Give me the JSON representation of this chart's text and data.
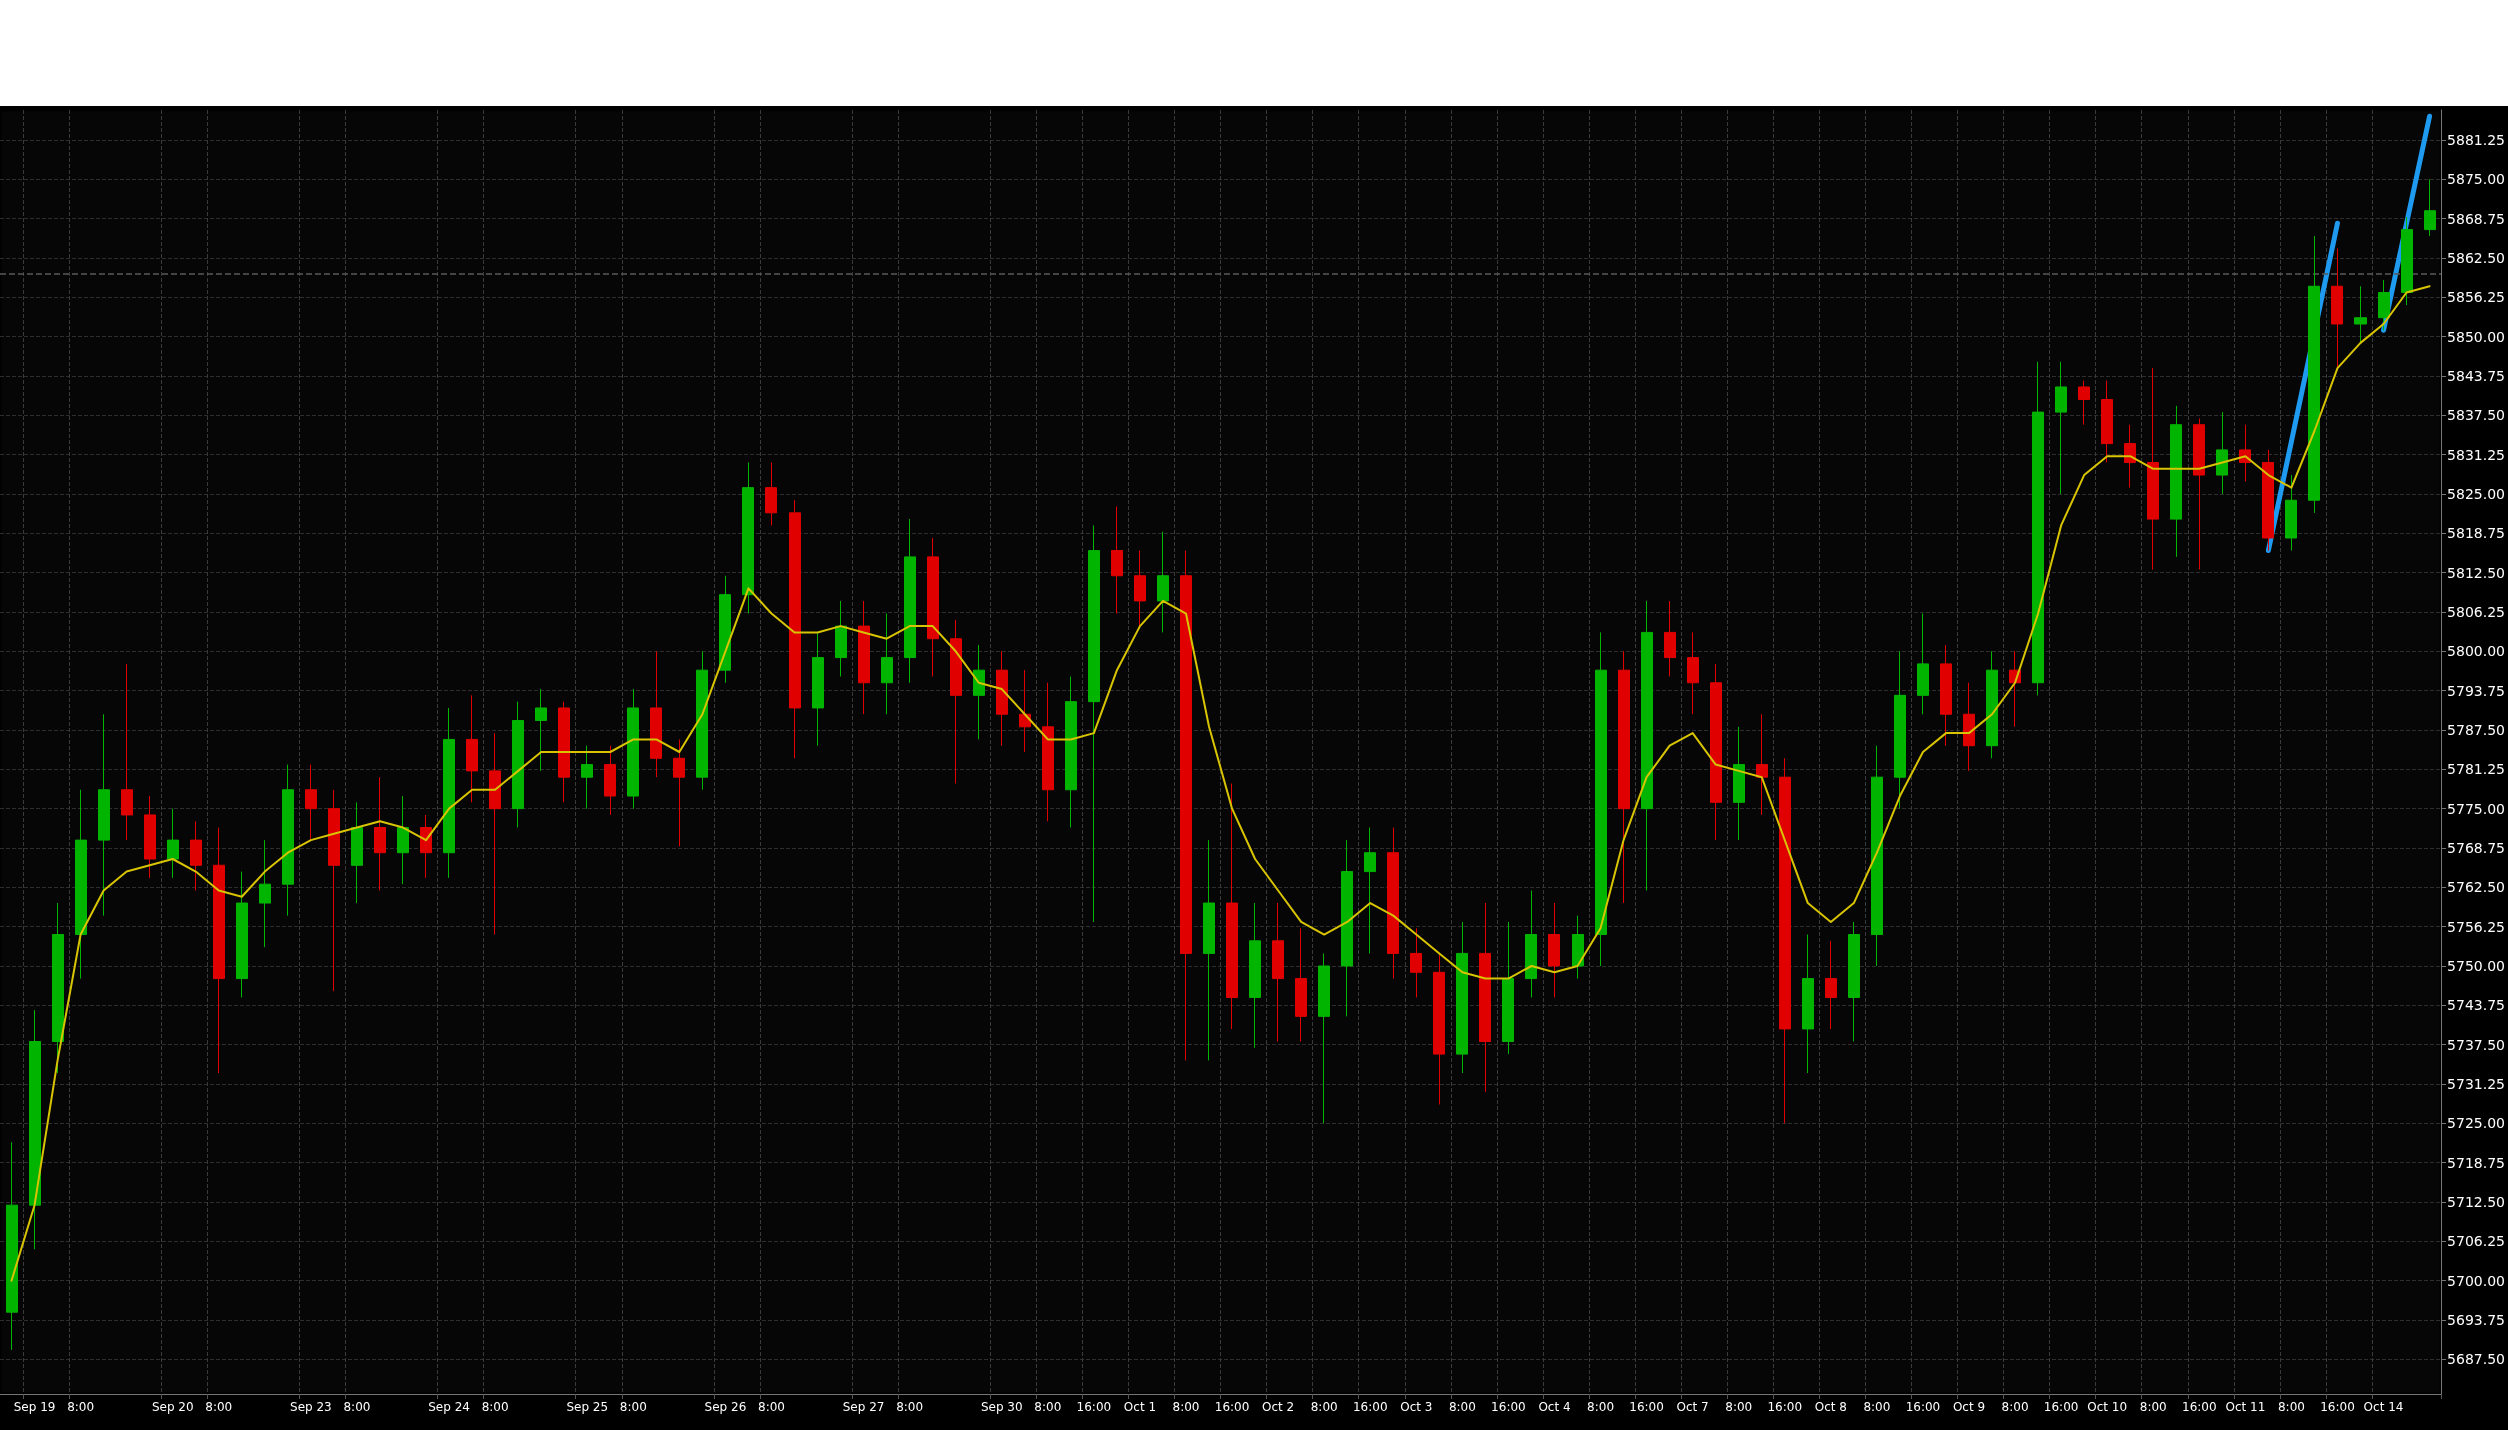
{
  "chart_data": {
    "type": "candlestick",
    "categories": [
      null,
      "Sep 19",
      null,
      "8:00",
      null,
      null,
      null,
      "Sep 20",
      null,
      "8:00",
      null,
      null,
      null,
      "Sep 23",
      null,
      "8:00",
      null,
      null,
      null,
      "Sep 24",
      null,
      "8:00",
      null,
      null,
      null,
      "Sep 25",
      null,
      "8:00",
      null,
      null,
      null,
      "Sep 26",
      null,
      "8:00",
      null,
      null,
      null,
      "Sep 27",
      null,
      "8:00",
      null,
      null,
      null,
      "Sep 30",
      null,
      "8:00",
      null,
      "16:00",
      null,
      "Oct 1",
      null,
      "8:00",
      null,
      "16:00",
      null,
      "Oct 2",
      null,
      "8:00",
      null,
      "16:00",
      null,
      "Oct 3",
      null,
      "8:00",
      null,
      "16:00",
      null,
      "Oct 4",
      null,
      "8:00",
      null,
      "16:00",
      null,
      "Oct 7",
      null,
      "8:00",
      null,
      "16:00",
      null,
      "Oct 8",
      null,
      "8:00",
      null,
      "16:00",
      null,
      "Oct 9",
      null,
      "8:00",
      null,
      "16:00",
      null,
      "Oct 10",
      null,
      "8:00",
      null,
      "16:00",
      null,
      "Oct 11",
      null,
      "8:00",
      null,
      "16:00",
      null,
      "Oct 14",
      null,
      null
    ],
    "ohlc": [
      [
        5695,
        5722,
        5689,
        5712
      ],
      [
        5712,
        5743,
        5705,
        5738
      ],
      [
        5738,
        5760,
        5733,
        5755
      ],
      [
        5755,
        5778,
        5748,
        5770
      ],
      [
        5770,
        5790,
        5758,
        5778
      ],
      [
        5778,
        5798,
        5770,
        5774
      ],
      [
        5774,
        5777,
        5764,
        5767
      ],
      [
        5767,
        5775,
        5764,
        5770
      ],
      [
        5770,
        5773,
        5762,
        5766
      ],
      [
        5766,
        5772,
        5733,
        5748
      ],
      [
        5748,
        5765,
        5745,
        5760
      ],
      [
        5760,
        5770,
        5753,
        5763
      ],
      [
        5763,
        5782,
        5758,
        5778
      ],
      [
        5778,
        5782,
        5770,
        5775
      ],
      [
        5775,
        5778,
        5746,
        5766
      ],
      [
        5766,
        5776,
        5760,
        5772
      ],
      [
        5772,
        5780,
        5762,
        5768
      ],
      [
        5768,
        5777,
        5763,
        5772
      ],
      [
        5772,
        5774,
        5764,
        5768
      ],
      [
        5768,
        5791,
        5764,
        5786
      ],
      [
        5786,
        5793,
        5776,
        5781
      ],
      [
        5781,
        5787,
        5755,
        5775
      ],
      [
        5775,
        5792,
        5772,
        5789
      ],
      [
        5789,
        5794,
        5781,
        5791
      ],
      [
        5791,
        5792,
        5776,
        5780
      ],
      [
        5780,
        5785,
        5775,
        5782
      ],
      [
        5782,
        5785,
        5774,
        5777
      ],
      [
        5777,
        5794,
        5775,
        5791
      ],
      [
        5791,
        5800,
        5780,
        5783
      ],
      [
        5783,
        5786,
        5769,
        5780
      ],
      [
        5780,
        5800,
        5778,
        5797
      ],
      [
        5797,
        5812,
        5795,
        5809
      ],
      [
        5809,
        5830,
        5806,
        5826
      ],
      [
        5826,
        5830,
        5820,
        5822
      ],
      [
        5822,
        5824,
        5783,
        5791
      ],
      [
        5791,
        5803,
        5785,
        5799
      ],
      [
        5799,
        5808,
        5796,
        5804
      ],
      [
        5804,
        5808,
        5790,
        5795
      ],
      [
        5795,
        5806,
        5790,
        5799
      ],
      [
        5799,
        5821,
        5795,
        5815
      ],
      [
        5815,
        5818,
        5796,
        5802
      ],
      [
        5802,
        5805,
        5779,
        5793
      ],
      [
        5793,
        5801,
        5786,
        5797
      ],
      [
        5797,
        5800,
        5785,
        5790
      ],
      [
        5790,
        5797,
        5784,
        5788
      ],
      [
        5788,
        5795,
        5773,
        5778
      ],
      [
        5778,
        5796,
        5772,
        5792
      ],
      [
        5792,
        5820,
        5757,
        5816
      ],
      [
        5816,
        5823,
        5806,
        5812
      ],
      [
        5812,
        5816,
        5804,
        5808
      ],
      [
        5808,
        5819,
        5803,
        5812
      ],
      [
        5812,
        5816,
        5735,
        5752
      ],
      [
        5752,
        5770,
        5735,
        5760
      ],
      [
        5760,
        5779,
        5740,
        5745
      ],
      [
        5745,
        5760,
        5737,
        5754
      ],
      [
        5754,
        5760,
        5738,
        5748
      ],
      [
        5748,
        5756,
        5738,
        5742
      ],
      [
        5742,
        5752,
        5725,
        5750
      ],
      [
        5750,
        5770,
        5742,
        5765
      ],
      [
        5765,
        5772,
        5752,
        5768
      ],
      [
        5768,
        5772,
        5748,
        5752
      ],
      [
        5752,
        5756,
        5745,
        5749
      ],
      [
        5749,
        5752,
        5728,
        5736
      ],
      [
        5736,
        5757,
        5733,
        5752
      ],
      [
        5752,
        5760,
        5730,
        5738
      ],
      [
        5738,
        5757,
        5736,
        5748
      ],
      [
        5748,
        5762,
        5745,
        5755
      ],
      [
        5755,
        5760,
        5745,
        5750
      ],
      [
        5750,
        5758,
        5748,
        5755
      ],
      [
        5755,
        5803,
        5750,
        5797
      ],
      [
        5797,
        5800,
        5760,
        5775
      ],
      [
        5775,
        5808,
        5762,
        5803
      ],
      [
        5803,
        5808,
        5796,
        5799
      ],
      [
        5799,
        5803,
        5790,
        5795
      ],
      [
        5795,
        5798,
        5770,
        5776
      ],
      [
        5776,
        5788,
        5770,
        5782
      ],
      [
        5782,
        5790,
        5774,
        5780
      ],
      [
        5780,
        5783,
        5725,
        5740
      ],
      [
        5740,
        5755,
        5733,
        5748
      ],
      [
        5748,
        5754,
        5740,
        5745
      ],
      [
        5745,
        5757,
        5738,
        5755
      ],
      [
        5755,
        5785,
        5750,
        5780
      ],
      [
        5780,
        5800,
        5775,
        5793
      ],
      [
        5793,
        5806,
        5790,
        5798
      ],
      [
        5798,
        5801,
        5785,
        5790
      ],
      [
        5790,
        5795,
        5781,
        5785
      ],
      [
        5785,
        5800,
        5783,
        5797
      ],
      [
        5797,
        5800,
        5788,
        5795
      ],
      [
        5795,
        5846,
        5793,
        5838
      ],
      [
        5838,
        5846,
        5825,
        5842
      ],
      [
        5842,
        5843,
        5836,
        5840
      ],
      [
        5840,
        5843,
        5830,
        5833
      ],
      [
        5833,
        5836,
        5826,
        5830
      ],
      [
        5830,
        5845,
        5813,
        5821
      ],
      [
        5821,
        5839,
        5815,
        5836
      ],
      [
        5836,
        5837,
        5813,
        5828
      ],
      [
        5828,
        5838,
        5825,
        5832
      ],
      [
        5832,
        5836,
        5827,
        5830
      ],
      [
        5830,
        5832,
        5816,
        5818
      ],
      [
        5818,
        5828,
        5816,
        5824
      ],
      [
        5824,
        5866,
        5822,
        5858
      ],
      [
        5858,
        5864,
        5845,
        5852
      ],
      [
        5852,
        5858,
        5849,
        5853
      ],
      [
        5853,
        5859,
        5851,
        5857
      ],
      [
        5857,
        5869,
        5855,
        5867
      ],
      [
        5867,
        5875,
        5866,
        5870
      ]
    ],
    "colors": [
      "#00b400",
      "#00b400",
      "#00b400",
      "#00b400",
      "#00b400",
      "#e00000",
      "#e00000",
      "#00b400",
      "#e00000",
      "#e00000",
      "#00b400",
      "#00b400",
      "#00b400",
      "#e00000",
      "#e00000",
      "#00b400",
      "#e00000",
      "#00b400",
      "#e00000",
      "#00b400",
      "#e00000",
      "#e00000",
      "#00b400",
      "#00b400",
      "#e00000",
      "#00b400",
      "#e00000",
      "#00b400",
      "#e00000",
      "#e00000",
      "#00b400",
      "#00b400",
      "#00b400",
      "#e00000",
      "#e00000",
      "#00b400",
      "#00b400",
      "#e00000",
      "#00b400",
      "#00b400",
      "#e00000",
      "#e00000",
      "#00b400",
      "#e00000",
      "#e00000",
      "#e00000",
      "#00b400",
      "#00b400",
      "#e00000",
      "#e00000",
      "#00b400",
      "#e00000",
      "#00b400",
      "#e00000",
      "#00b400",
      "#e00000",
      "#e00000",
      "#00b400",
      "#00b400",
      "#00b400",
      "#e00000",
      "#e00000",
      "#e00000",
      "#00b400",
      "#e00000",
      "#00b400",
      "#00b400",
      "#e00000",
      "#00b400",
      "#00b400",
      "#e00000",
      "#00b400",
      "#e00000",
      "#e00000",
      "#e00000",
      "#00b400",
      "#e00000",
      "#e00000",
      "#00b400",
      "#e00000",
      "#00b400",
      "#00b400",
      "#00b400",
      "#00b400",
      "#e00000",
      "#e00000",
      "#00b400",
      "#e00000",
      "#00b400",
      "#00b400",
      "#e00000",
      "#e00000",
      "#e00000",
      "#e00000",
      "#00b400",
      "#e00000",
      "#00b400",
      "#e00000",
      "#e00000",
      "#00b400",
      "#00b400",
      "#e00000",
      "#00b400",
      "#00b400",
      "#00b400",
      "#00b400"
    ],
    "series": [
      {
        "type": "line",
        "color": "#d8c400",
        "values": [
          5700,
          5712,
          5735,
          5755,
          5762,
          5765,
          5766,
          5767,
          5765,
          5762,
          5761,
          5765,
          5768,
          5770,
          5771,
          5772,
          5773,
          5772,
          5770,
          5775,
          5778,
          5778,
          5781,
          5784,
          5784,
          5784,
          5784,
          5786,
          5786,
          5784,
          5790,
          5800,
          5810,
          5806,
          5803,
          5803,
          5804,
          5803,
          5802,
          5804,
          5804,
          5800,
          5795,
          5794,
          5790,
          5786,
          5786,
          5787,
          5797,
          5804,
          5808,
          5806,
          5788,
          5775,
          5767,
          5762,
          5757,
          5755,
          5757,
          5760,
          5758,
          5755,
          5752,
          5749,
          5748,
          5748,
          5750,
          5749,
          5750,
          5756,
          5770,
          5780,
          5785,
          5787,
          5782,
          5781,
          5780,
          5770,
          5760,
          5757,
          5760,
          5768,
          5777,
          5784,
          5787,
          5787,
          5790,
          5795,
          5806,
          5820,
          5828,
          5831,
          5831,
          5829,
          5829,
          5829,
          5830,
          5831,
          5828,
          5826,
          5835,
          5845,
          5849,
          5852,
          5857,
          5858
        ]
      },
      {
        "type": "line",
        "color": "#1e9bf0",
        "values": [
          null,
          null,
          null,
          null,
          null,
          null,
          null,
          null,
          null,
          null,
          null,
          null,
          null,
          null,
          null,
          null,
          null,
          null,
          null,
          null,
          null,
          null,
          null,
          null,
          null,
          null,
          null,
          null,
          null,
          null,
          null,
          null,
          null,
          null,
          null,
          null,
          null,
          null,
          null,
          null,
          null,
          null,
          null,
          null,
          null,
          null,
          null,
          null,
          null,
          null,
          null,
          null,
          null,
          null,
          null,
          null,
          null,
          null,
          null,
          null,
          null,
          null,
          null,
          null,
          null,
          null,
          null,
          null,
          null,
          null,
          null,
          null,
          null,
          null,
          null,
          null,
          null,
          null,
          null,
          null,
          null,
          null,
          null,
          null,
          null,
          null,
          null,
          null,
          null,
          null,
          null,
          null,
          null,
          null,
          null,
          null,
          null,
          null,
          5816,
          null,
          null,
          5868,
          null,
          null,
          null,
          null
        ]
      },
      {
        "type": "line",
        "color": "#1e9bf0",
        "values": [
          null,
          null,
          null,
          null,
          null,
          null,
          null,
          null,
          null,
          null,
          null,
          null,
          null,
          null,
          null,
          null,
          null,
          null,
          null,
          null,
          null,
          null,
          null,
          null,
          null,
          null,
          null,
          null,
          null,
          null,
          null,
          null,
          null,
          null,
          null,
          null,
          null,
          null,
          null,
          null,
          null,
          null,
          null,
          null,
          null,
          null,
          null,
          null,
          null,
          null,
          null,
          null,
          null,
          null,
          null,
          null,
          null,
          null,
          null,
          null,
          null,
          null,
          null,
          null,
          null,
          null,
          null,
          null,
          null,
          null,
          null,
          null,
          null,
          null,
          null,
          null,
          null,
          null,
          null,
          null,
          null,
          null,
          null,
          null,
          null,
          null,
          null,
          null,
          null,
          null,
          null,
          null,
          null,
          null,
          null,
          null,
          null,
          null,
          null,
          null,
          null,
          null,
          null,
          5851,
          null,
          5885
        ]
      }
    ],
    "ylim": [
      5682,
      5886
    ],
    "yticks": [
      {
        "value": 5687.5,
        "label": "5687.50"
      },
      {
        "value": 5693.75,
        "label": "5693.75"
      },
      {
        "value": 5700,
        "label": "5700.00"
      },
      {
        "value": 5706.25,
        "label": "5706.25"
      },
      {
        "value": 5712.5,
        "label": "5712.50"
      },
      {
        "value": 5718.75,
        "label": "5718.75"
      },
      {
        "value": 5725,
        "label": "5725.00"
      },
      {
        "value": 5731.25,
        "label": "5731.25"
      },
      {
        "value": 5737.5,
        "label": "5737.50"
      },
      {
        "value": 5743.75,
        "label": "5743.75"
      },
      {
        "value": 5750,
        "label": "5750.00"
      },
      {
        "value": 5756.25,
        "label": "5756.25"
      },
      {
        "value": 5762.5,
        "label": "5762.50"
      },
      {
        "value": 5768.75,
        "label": "5768.75"
      },
      {
        "value": 5775,
        "label": "5775.00"
      },
      {
        "value": 5781.25,
        "label": "5781.25"
      },
      {
        "value": 5787.5,
        "label": "5787.50"
      },
      {
        "value": 5793.75,
        "label": "5793.75"
      },
      {
        "value": 5800,
        "label": "5800.00"
      },
      {
        "value": 5806.25,
        "label": "5806.25"
      },
      {
        "value": 5812.5,
        "label": "5812.50"
      },
      {
        "value": 5818.75,
        "label": "5818.75"
      },
      {
        "value": 5825,
        "label": "5825.00"
      },
      {
        "value": 5831.25,
        "label": "5831.25"
      },
      {
        "value": 5837.5,
        "label": "5837.50"
      },
      {
        "value": 5843.75,
        "label": "5843.75"
      },
      {
        "value": 5850,
        "label": "5850.00"
      },
      {
        "value": 5856.25,
        "label": "5856.25"
      },
      {
        "value": 5862.5,
        "label": "5862.50"
      },
      {
        "value": 5868.75,
        "label": "5868.75"
      },
      {
        "value": 5875,
        "label": "5875.00"
      },
      {
        "value": 5881.25,
        "label": "5881.25"
      }
    ],
    "ref_lines": [
      {
        "axis": "y",
        "value": 5860,
        "color": "#5a5a5a",
        "line_style": "dashed"
      }
    ],
    "grid": true
  }
}
